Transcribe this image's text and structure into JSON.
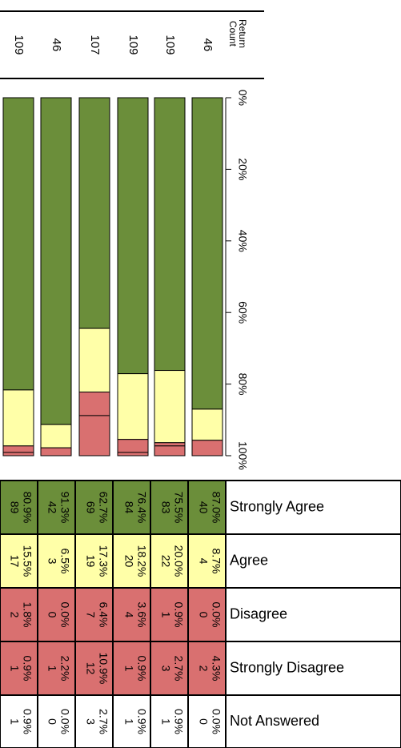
{
  "chart_data": {
    "type": "bar",
    "orientation": "stacked-100-percent",
    "header": {
      "line1": "Return",
      "line2": "Count"
    },
    "axis": {
      "range": [
        0,
        100
      ],
      "ticks": [
        "0%",
        "20%",
        "40%",
        "60%",
        "80%",
        "100%"
      ]
    },
    "grid": false,
    "colors": {
      "Strongly Agree": "#6b8e3a",
      "Agree": "#ffffa8",
      "Disagree": "#d97070",
      "Strongly Disagree": "#d97070",
      "Not Answered": "#ffffff"
    },
    "series": [
      {
        "name": "Strongly Agree",
        "counts": [
          89,
          42,
          69,
          84,
          83,
          40
        ],
        "percents": [
          "80.9%",
          "91.3%",
          "62.7%",
          "76.4%",
          "75.5%",
          "87.0%"
        ],
        "values": [
          80.9,
          91.3,
          62.7,
          76.4,
          75.5,
          87.0
        ]
      },
      {
        "name": "Agree",
        "counts": [
          17,
          3,
          19,
          20,
          22,
          4
        ],
        "percents": [
          "15.5%",
          "6.5%",
          "17.3%",
          "18.2%",
          "20.0%",
          "8.7%"
        ],
        "values": [
          15.5,
          6.5,
          17.3,
          18.2,
          20.0,
          8.7
        ]
      },
      {
        "name": "Disagree",
        "counts": [
          2,
          0,
          7,
          4,
          1,
          0
        ],
        "percents": [
          "1.8%",
          "0.0%",
          "6.4%",
          "3.6%",
          "0.9%",
          "0.0%"
        ],
        "values": [
          1.8,
          0.0,
          6.4,
          3.6,
          0.9,
          0.0
        ]
      },
      {
        "name": "Strongly Disagree",
        "counts": [
          1,
          1,
          12,
          1,
          3,
          2
        ],
        "percents": [
          "0.9%",
          "2.2%",
          "10.9%",
          "0.9%",
          "2.7%",
          "4.3%"
        ],
        "values": [
          0.9,
          2.2,
          10.9,
          0.9,
          2.7,
          4.3
        ]
      },
      {
        "name": "Not Answered",
        "counts": [
          1,
          0,
          3,
          1,
          1,
          0
        ],
        "percents": [
          "0.9%",
          "0.0%",
          "2.7%",
          "0.9%",
          "0.9%",
          "0.0%"
        ],
        "values": [
          0.9,
          0.0,
          2.7,
          0.9,
          0.9,
          0.0
        ]
      }
    ],
    "return_counts": [
      109,
      46,
      107,
      109,
      109,
      46
    ]
  }
}
